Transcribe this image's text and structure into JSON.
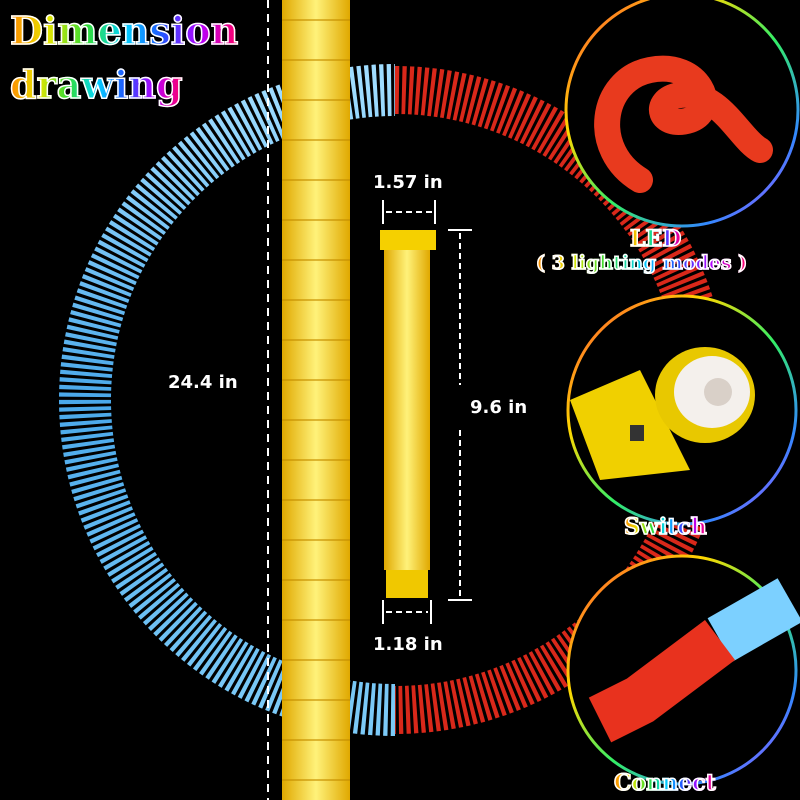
{
  "title": {
    "line1": "Dimension",
    "line2": "drawing"
  },
  "dimensions": {
    "top_diameter": "1.57 in",
    "bottom_diameter": "1.18 in",
    "tube_length": "9.6 in",
    "stretched_length": "24.4 in"
  },
  "features": [
    {
      "label": "LED",
      "sublabel": "( 3 lighting modes )",
      "icon": "coiled-led-tube"
    },
    {
      "label": "Switch",
      "icon": "tube-end-switch"
    },
    {
      "label": "Connect",
      "icon": "tube-connector"
    }
  ],
  "colors": {
    "ring_left": "#5ab8f0",
    "ring_right": "#e8321e",
    "tube": "#f2d21a",
    "background": "#000000"
  }
}
